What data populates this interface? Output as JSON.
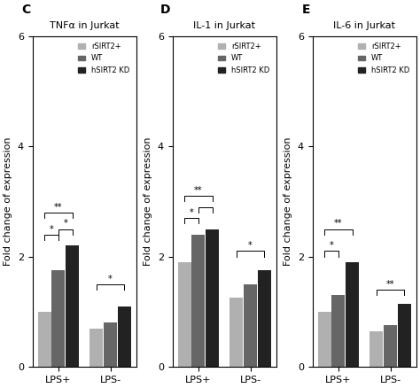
{
  "chart_data": [
    {
      "type": "bar",
      "title": "TNFα in Jurkat",
      "y_label": "Fold change of expression",
      "categories": [
        "LPS+",
        "LPS-"
      ],
      "series": [
        {
          "name": "rSIRT2+",
          "color": "#b0b0b0",
          "values": [
            1.0,
            0.7
          ]
        },
        {
          "name": "WT",
          "color": "#666666",
          "values": [
            1.75,
            0.8
          ]
        },
        {
          "name": "hSIRT2 KD",
          "color": "#222222",
          "values": [
            2.2,
            1.1
          ]
        }
      ],
      "ylim": [
        0,
        6
      ],
      "yticks": [
        0,
        2,
        4,
        6
      ],
      "legend": "upper right",
      "annotations": [
        {
          "text": "C"
        },
        {
          "text": "*",
          "group": "LPS+",
          "from": "rSIRT2+",
          "to": "WT",
          "y": 2.3
        },
        {
          "text": "**",
          "group": "LPS+",
          "from": "rSIRT2+",
          "to": "hSIRT2 KD",
          "y": 2.7
        },
        {
          "text": "*",
          "group": "LPS+",
          "from": "WT",
          "to": "hSIRT2 KD",
          "y": 2.4
        },
        {
          "text": "*",
          "group": "LPS-",
          "from": "rSIRT2+",
          "to": "hSIRT2 KD",
          "y": 1.4
        }
      ]
    },
    {
      "type": "bar",
      "title": "IL-1 in Jurkat",
      "y_label": "Fold change of expression",
      "categories": [
        "LPS+",
        "LPS-"
      ],
      "series": [
        {
          "name": "rSIRT2+",
          "color": "#b0b0b0",
          "values": [
            1.9,
            1.25
          ]
        },
        {
          "name": "WT",
          "color": "#666666",
          "values": [
            2.4,
            1.5
          ]
        },
        {
          "name": "hSIRT2 KD",
          "color": "#222222",
          "values": [
            2.5,
            1.75
          ]
        }
      ],
      "ylim": [
        0,
        6
      ],
      "yticks": [
        0,
        2,
        4,
        6
      ],
      "legend": "upper right",
      "annotations": [
        {
          "text": "D"
        },
        {
          "text": "*",
          "group": "LPS+",
          "from": "rSIRT2+",
          "to": "WT",
          "y": 2.6
        },
        {
          "text": "**",
          "group": "LPS+",
          "from": "rSIRT2+",
          "to": "hSIRT2 KD",
          "y": 3.0
        },
        {
          "group": "LPS+",
          "from": "WT",
          "to": "hSIRT2 KD",
          "y": 2.8
        },
        {
          "text": "*",
          "group": "LPS-",
          "from": "rSIRT2+",
          "to": "hSIRT2 KD",
          "y": 2.0
        }
      ]
    },
    {
      "type": "bar",
      "title": "IL-6 in Jurkat",
      "y_label": "Fold change of expression",
      "categories": [
        "LPS+",
        "LPS-"
      ],
      "series": [
        {
          "name": "rSIRT2+",
          "color": "#b0b0b0",
          "values": [
            1.0,
            0.65
          ]
        },
        {
          "name": "WT",
          "color": "#666666",
          "values": [
            1.3,
            0.75
          ]
        },
        {
          "name": "hSIRT2 KD",
          "color": "#222222",
          "values": [
            1.9,
            1.15
          ]
        }
      ],
      "ylim": [
        0,
        6
      ],
      "yticks": [
        0,
        2,
        4,
        6
      ],
      "legend": "upper right",
      "annotations": [
        {
          "text": "E"
        },
        {
          "text": "*",
          "group": "LPS+",
          "from": "rSIRT2+",
          "to": "WT",
          "y": 2.0
        },
        {
          "text": "**",
          "group": "LPS+",
          "from": "rSIRT2+",
          "to": "hSIRT2 KD",
          "y": 2.4
        },
        {
          "text": "**",
          "group": "LPS-",
          "from": "rSIRT2+",
          "to": "hSIRT2 KD",
          "y": 1.3
        }
      ]
    }
  ]
}
